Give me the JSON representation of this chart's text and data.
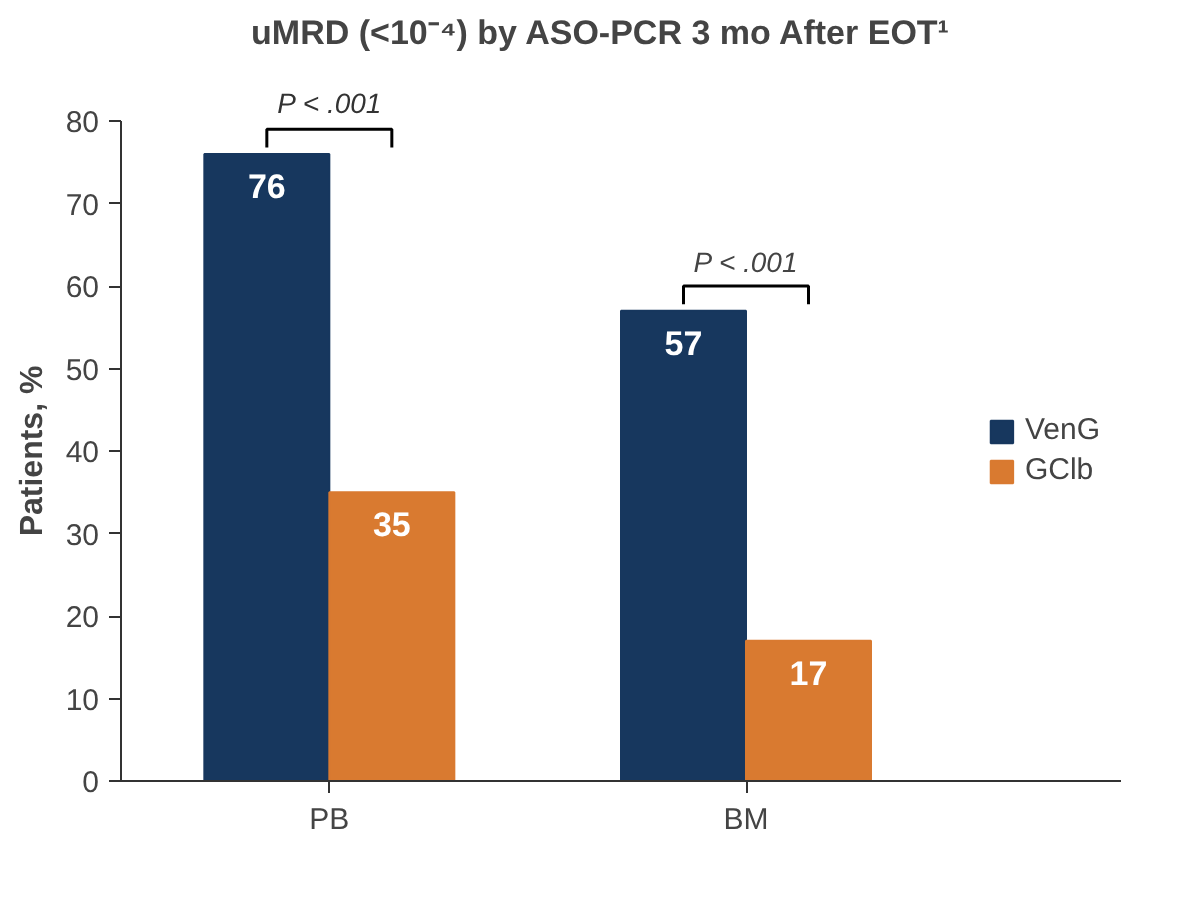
{
  "chart_data": {
    "type": "bar",
    "title": "uMRD (<10⁻⁴) by ASO-PCR 3 mo After EOT¹",
    "ylabel": "Patients, %",
    "categories": [
      "PB",
      "BM"
    ],
    "series": [
      {
        "name": "VenG",
        "color": "#17375e",
        "values": [
          76,
          57
        ]
      },
      {
        "name": "GClb",
        "color": "#d97a30",
        "values": [
          35,
          17
        ]
      }
    ],
    "ylim": [
      0,
      80
    ],
    "yticks": [
      0,
      10,
      20,
      30,
      40,
      50,
      60,
      70,
      80
    ],
    "grid": false,
    "legend": "right",
    "data_labels": true,
    "annotations": [
      "P < .001",
      "P < .001"
    ]
  }
}
